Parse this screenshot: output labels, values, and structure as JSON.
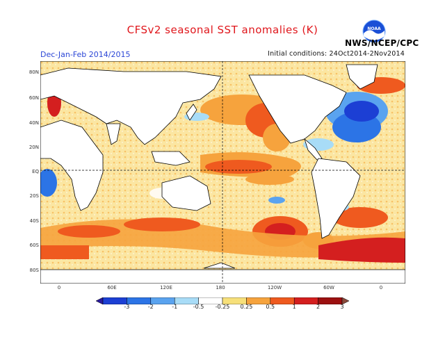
{
  "title": "CFSv2 seasonal SST anomalies (K)",
  "period": "Dec-Jan-Feb 2014/2015",
  "initial_conditions": "Initial conditions: 24Oct2014-2Nov2014",
  "agency": "NWS/NCEP/CPC",
  "logo_text": "NOAA",
  "lat_labels": [
    "80N",
    "60N",
    "40N",
    "20N",
    "EQ",
    "20S",
    "40S",
    "60S",
    "80S"
  ],
  "lon_labels": [
    "0",
    "60E",
    "120E",
    "180",
    "120W",
    "60W",
    "0"
  ],
  "colorbar": {
    "ticks": [
      "-3",
      "-2",
      "-1",
      "-0.5",
      "-0.25",
      "0.25",
      "0.5",
      "1",
      "2",
      "3"
    ],
    "colors": [
      "#2a1a9e",
      "#1c3fd4",
      "#2c74e6",
      "#5aa3ef",
      "#a8dcf7",
      "#ffffff",
      "#f7e07a",
      "#f6a33d",
      "#ef5a1f",
      "#d41f1f",
      "#9c1010",
      "#8a4a3c"
    ]
  }
}
